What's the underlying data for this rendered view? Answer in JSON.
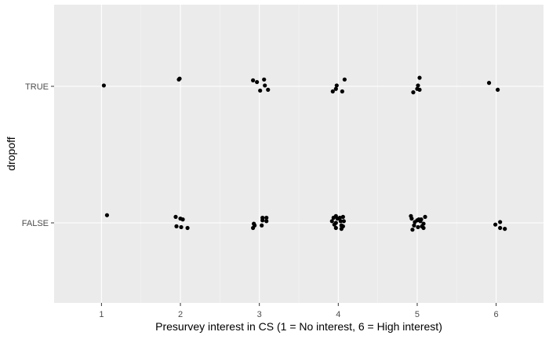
{
  "chart_data": {
    "type": "scatter",
    "title": "",
    "xlabel": "Presurvey interest in CS (1 = No interest, 6 = High interest)",
    "ylabel": "dropoff",
    "x_ticks": [
      "1",
      "2",
      "3",
      "4",
      "5",
      "6"
    ],
    "y_categories": [
      "FALSE",
      "TRUE"
    ],
    "xlim": [
      0.4,
      6.6
    ],
    "grid": true,
    "legend": "none",
    "colors": {
      "panel": "#ebebeb",
      "grid_major": "#ffffff",
      "grid_minor": "#f5f5f5",
      "point": "#000000",
      "tick": "#333333"
    },
    "points": [
      {
        "x": 1.03,
        "y": "TRUE",
        "jy": 0.01
      },
      {
        "x": 1.98,
        "y": "TRUE",
        "jy": 0.08
      },
      {
        "x": 1.99,
        "y": "TRUE",
        "jy": 0.09
      },
      {
        "x": 2.92,
        "y": "TRUE",
        "jy": 0.07
      },
      {
        "x": 2.97,
        "y": "TRUE",
        "jy": 0.05
      },
      {
        "x": 3.06,
        "y": "TRUE",
        "jy": 0.08
      },
      {
        "x": 3.07,
        "y": "TRUE",
        "jy": 0.01
      },
      {
        "x": 3.11,
        "y": "TRUE",
        "jy": -0.04
      },
      {
        "x": 3.01,
        "y": "TRUE",
        "jy": -0.05
      },
      {
        "x": 3.98,
        "y": "TRUE",
        "jy": 0.01
      },
      {
        "x": 4.08,
        "y": "TRUE",
        "jy": 0.08
      },
      {
        "x": 3.93,
        "y": "TRUE",
        "jy": -0.06
      },
      {
        "x": 3.97,
        "y": "TRUE",
        "jy": -0.03
      },
      {
        "x": 4.05,
        "y": "TRUE",
        "jy": -0.06
      },
      {
        "x": 5.03,
        "y": "TRUE",
        "jy": 0.1
      },
      {
        "x": 5.01,
        "y": "TRUE",
        "jy": 0.01
      },
      {
        "x": 5.0,
        "y": "TRUE",
        "jy": -0.03
      },
      {
        "x": 5.03,
        "y": "TRUE",
        "jy": -0.04
      },
      {
        "x": 4.95,
        "y": "TRUE",
        "jy": -0.07
      },
      {
        "x": 5.91,
        "y": "TRUE",
        "jy": 0.04
      },
      {
        "x": 6.02,
        "y": "TRUE",
        "jy": -0.04
      },
      {
        "x": 1.07,
        "y": "FALSE",
        "jy": 0.09
      },
      {
        "x": 1.94,
        "y": "FALSE",
        "jy": 0.07
      },
      {
        "x": 2.0,
        "y": "FALSE",
        "jy": 0.05
      },
      {
        "x": 2.03,
        "y": "FALSE",
        "jy": 0.04
      },
      {
        "x": 1.95,
        "y": "FALSE",
        "jy": -0.04
      },
      {
        "x": 2.01,
        "y": "FALSE",
        "jy": -0.05
      },
      {
        "x": 2.09,
        "y": "FALSE",
        "jy": -0.06
      },
      {
        "x": 3.04,
        "y": "FALSE",
        "jy": 0.06
      },
      {
        "x": 3.09,
        "y": "FALSE",
        "jy": 0.06
      },
      {
        "x": 3.04,
        "y": "FALSE",
        "jy": 0.03
      },
      {
        "x": 3.09,
        "y": "FALSE",
        "jy": 0.02
      },
      {
        "x": 2.93,
        "y": "FALSE",
        "jy": -0.01
      },
      {
        "x": 2.94,
        "y": "FALSE",
        "jy": -0.03
      },
      {
        "x": 3.03,
        "y": "FALSE",
        "jy": -0.03
      },
      {
        "x": 2.92,
        "y": "FALSE",
        "jy": -0.06
      },
      {
        "x": 3.97,
        "y": "FALSE",
        "jy": 0.08
      },
      {
        "x": 4.06,
        "y": "FALSE",
        "jy": 0.07
      },
      {
        "x": 3.94,
        "y": "FALSE",
        "jy": 0.06
      },
      {
        "x": 4.02,
        "y": "FALSE",
        "jy": 0.06
      },
      {
        "x": 3.99,
        "y": "FALSE",
        "jy": 0.05
      },
      {
        "x": 3.92,
        "y": "FALSE",
        "jy": 0.02
      },
      {
        "x": 4.03,
        "y": "FALSE",
        "jy": 0.02
      },
      {
        "x": 4.07,
        "y": "FALSE",
        "jy": 0.02
      },
      {
        "x": 3.97,
        "y": "FALSE",
        "jy": 0.0
      },
      {
        "x": 3.95,
        "y": "FALSE",
        "jy": -0.02
      },
      {
        "x": 4.04,
        "y": "FALSE",
        "jy": -0.03
      },
      {
        "x": 4.06,
        "y": "FALSE",
        "jy": -0.04
      },
      {
        "x": 3.97,
        "y": "FALSE",
        "jy": -0.06
      },
      {
        "x": 4.04,
        "y": "FALSE",
        "jy": -0.07
      },
      {
        "x": 4.92,
        "y": "FALSE",
        "jy": 0.08
      },
      {
        "x": 5.1,
        "y": "FALSE",
        "jy": 0.07
      },
      {
        "x": 4.93,
        "y": "FALSE",
        "jy": 0.05
      },
      {
        "x": 5.02,
        "y": "FALSE",
        "jy": 0.04
      },
      {
        "x": 5.05,
        "y": "FALSE",
        "jy": 0.04
      },
      {
        "x": 5.0,
        "y": "FALSE",
        "jy": 0.03
      },
      {
        "x": 4.97,
        "y": "FALSE",
        "jy": 0.01
      },
      {
        "x": 5.04,
        "y": "FALSE",
        "jy": 0.02
      },
      {
        "x": 5.08,
        "y": "FALSE",
        "jy": -0.01
      },
      {
        "x": 4.96,
        "y": "FALSE",
        "jy": -0.03
      },
      {
        "x": 5.06,
        "y": "FALSE",
        "jy": -0.04
      },
      {
        "x": 5.01,
        "y": "FALSE",
        "jy": -0.05
      },
      {
        "x": 5.08,
        "y": "FALSE",
        "jy": -0.06
      },
      {
        "x": 4.94,
        "y": "FALSE",
        "jy": -0.08
      },
      {
        "x": 6.05,
        "y": "FALSE",
        "jy": 0.01
      },
      {
        "x": 5.99,
        "y": "FALSE",
        "jy": -0.02
      },
      {
        "x": 6.05,
        "y": "FALSE",
        "jy": -0.06
      },
      {
        "x": 6.11,
        "y": "FALSE",
        "jy": -0.07
      }
    ]
  }
}
